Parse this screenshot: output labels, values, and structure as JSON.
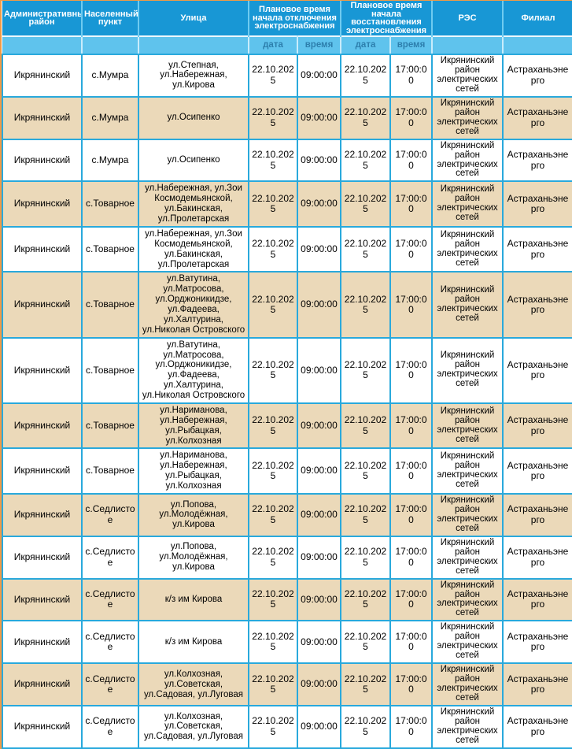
{
  "page": {
    "background_color": "#f09a45",
    "language": "ru"
  },
  "table": {
    "colors": {
      "header_bg": "#1897d5",
      "header_text": "#ffffff",
      "subheader_bg": "#5fc3ed",
      "subheader_text": "#2d7fad",
      "grid_border": "#29a9dc",
      "alt_row_bg": "#ebd9b9",
      "row_bg": "#ffffff",
      "body_text": "#000000"
    },
    "header": {
      "admin_district": "Административный район",
      "settlement": "Населенный пункт",
      "street": "Улица",
      "outage_start": "Плановое время начала отключения электроснабжения",
      "outage_end": "Плановое время начала восстановления электроснабжения",
      "res": "РЭС",
      "branch": "Филиал",
      "date": "дата",
      "time": "время"
    },
    "rows": [
      {
        "district": "Икрянинский",
        "settlement": "с.Мумра",
        "street": "ул.Степная, ул.Набережная, ул.Кирова",
        "start_date": "22.10.2025",
        "start_time": "09:00:00",
        "end_date": "22.10.2025",
        "end_time": "17:00:00",
        "res": "Икрянинский район электрических сетей",
        "branch": "Астраханьэнерго"
      },
      {
        "district": "Икрянинский",
        "settlement": "с.Мумра",
        "street": "ул.Осипенко",
        "start_date": "22.10.2025",
        "start_time": "09:00:00",
        "end_date": "22.10.2025",
        "end_time": "17:00:00",
        "res": "Икрянинский район электрических сетей",
        "branch": "Астраханьэнерго"
      },
      {
        "district": "Икрянинский",
        "settlement": "с.Мумра",
        "street": "ул.Осипенко",
        "start_date": "22.10.2025",
        "start_time": "09:00:00",
        "end_date": "22.10.2025",
        "end_time": "17:00:00",
        "res": "Икрянинский район электрических сетей",
        "branch": "Астраханьэнерго"
      },
      {
        "district": "Икрянинский",
        "settlement": "с.Товарное",
        "street": "ул.Набережная, ул.Зои Космодемьянской, ул.Бакинская, ул.Пролетарская",
        "start_date": "22.10.2025",
        "start_time": "09:00:00",
        "end_date": "22.10.2025",
        "end_time": "17:00:00",
        "res": "Икрянинский район электрических сетей",
        "branch": "Астраханьэнерго"
      },
      {
        "district": "Икрянинский",
        "settlement": "с.Товарное",
        "street": "ул.Набережная, ул.Зои Космодемьянской, ул.Бакинская, ул.Пролетарская",
        "start_date": "22.10.2025",
        "start_time": "09:00:00",
        "end_date": "22.10.2025",
        "end_time": "17:00:00",
        "res": "Икрянинский район электрических сетей",
        "branch": "Астраханьэнерго"
      },
      {
        "district": "Икрянинский",
        "settlement": "с.Товарное",
        "street": "ул.Ватутина, ул.Матросова, ул.Орджоникидзе, ул.Фадеева, ул.Халтурина, ул.Николая Островского",
        "start_date": "22.10.2025",
        "start_time": "09:00:00",
        "end_date": "22.10.2025",
        "end_time": "17:00:00",
        "res": "Икрянинский район электрических сетей",
        "branch": "Астраханьэнерго"
      },
      {
        "district": "Икрянинский",
        "settlement": "с.Товарное",
        "street": "ул.Ватутина, ул.Матросова, ул.Орджоникидзе, ул.Фадеева, ул.Халтурина, ул.Николая Островского",
        "start_date": "22.10.2025",
        "start_time": "09:00:00",
        "end_date": "22.10.2025",
        "end_time": "17:00:00",
        "res": "Икрянинский район электрических сетей",
        "branch": "Астраханьэнерго"
      },
      {
        "district": "Икрянинский",
        "settlement": "с.Товарное",
        "street": "ул.Нариманова, ул.Набережная, ул.Рыбацкая, ул.Колхозная",
        "start_date": "22.10.2025",
        "start_time": "09:00:00",
        "end_date": "22.10.2025",
        "end_time": "17:00:00",
        "res": "Икрянинский район электрических сетей",
        "branch": "Астраханьэнерго"
      },
      {
        "district": "Икрянинский",
        "settlement": "с.Товарное",
        "street": "ул.Нариманова, ул.Набережная, ул.Рыбацкая, ул.Колхозная",
        "start_date": "22.10.2025",
        "start_time": "09:00:00",
        "end_date": "22.10.2025",
        "end_time": "17:00:00",
        "res": "Икрянинский район электрических сетей",
        "branch": "Астраханьэнерго"
      },
      {
        "district": "Икрянинский",
        "settlement": "с.Седлистое",
        "street": "ул.Попова, ул.Молодёжная, ул.Кирова",
        "start_date": "22.10.2025",
        "start_time": "09:00:00",
        "end_date": "22.10.2025",
        "end_time": "17:00:00",
        "res": "Икрянинский район электрических сетей",
        "branch": "Астраханьэнерго"
      },
      {
        "district": "Икрянинский",
        "settlement": "с.Седлистое",
        "street": "ул.Попова, ул.Молодёжная, ул.Кирова",
        "start_date": "22.10.2025",
        "start_time": "09:00:00",
        "end_date": "22.10.2025",
        "end_time": "17:00:00",
        "res": "Икрянинский район электрических сетей",
        "branch": "Астраханьэнерго"
      },
      {
        "district": "Икрянинский",
        "settlement": "с.Седлистое",
        "street": "к/з им Кирова",
        "start_date": "22.10.2025",
        "start_time": "09:00:00",
        "end_date": "22.10.2025",
        "end_time": "17:00:00",
        "res": "Икрянинский район электрических сетей",
        "branch": "Астраханьэнерго"
      },
      {
        "district": "Икрянинский",
        "settlement": "с.Седлистое",
        "street": "к/з им Кирова",
        "start_date": "22.10.2025",
        "start_time": "09:00:00",
        "end_date": "22.10.2025",
        "end_time": "17:00:00",
        "res": "Икрянинский район электрических сетей",
        "branch": "Астраханьэнерго"
      },
      {
        "district": "Икрянинский",
        "settlement": "с.Седлистое",
        "street": "ул.Колхозная, ул.Советская, ул.Садовая, ул.Луговая",
        "start_date": "22.10.2025",
        "start_time": "09:00:00",
        "end_date": "22.10.2025",
        "end_time": "17:00:00",
        "res": "Икрянинский район электрических сетей",
        "branch": "Астраханьэнерго"
      },
      {
        "district": "Икрянинский",
        "settlement": "с.Седлистое",
        "street": "ул.Колхозная, ул.Советская, ул.Садовая, ул.Луговая",
        "start_date": "22.10.2025",
        "start_time": "09:00:00",
        "end_date": "22.10.2025",
        "end_time": "17:00:00",
        "res": "Икрянинский район электрических сетей",
        "branch": "Астраханьэнерго"
      }
    ]
  }
}
